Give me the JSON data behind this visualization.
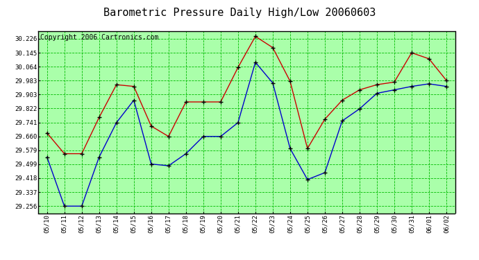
{
  "title": "Barometric Pressure Daily High/Low 20060603",
  "copyright": "Copyright 2006 Cartronics.com",
  "dates": [
    "05/10",
    "05/11",
    "05/12",
    "05/13",
    "05/14",
    "05/15",
    "05/16",
    "05/17",
    "05/18",
    "05/19",
    "05/20",
    "05/21",
    "05/22",
    "05/23",
    "05/24",
    "05/25",
    "05/26",
    "05/27",
    "05/28",
    "05/29",
    "05/30",
    "05/31",
    "06/01",
    "06/02"
  ],
  "high": [
    29.68,
    29.56,
    29.56,
    29.77,
    29.96,
    29.95,
    29.72,
    29.66,
    29.86,
    29.86,
    29.86,
    30.06,
    30.24,
    30.175,
    29.98,
    29.59,
    29.76,
    29.87,
    29.93,
    29.96,
    29.975,
    30.145,
    30.11,
    29.985
  ],
  "low": [
    29.54,
    29.256,
    29.256,
    29.54,
    29.74,
    29.87,
    29.5,
    29.49,
    29.56,
    29.66,
    29.66,
    29.74,
    30.09,
    29.97,
    29.59,
    29.41,
    29.45,
    29.75,
    29.82,
    29.91,
    29.93,
    29.95,
    29.965,
    29.95
  ],
  "high_color": "#cc0000",
  "low_color": "#0000cc",
  "bg_color": "#aaffaa",
  "grid_color": "#00bb00",
  "title_fontsize": 11,
  "copyright_fontsize": 7,
  "y_ticks": [
    29.256,
    29.337,
    29.418,
    29.499,
    29.579,
    29.66,
    29.741,
    29.822,
    29.903,
    29.983,
    30.064,
    30.145,
    30.226
  ],
  "ylim_min": 29.215,
  "ylim_max": 30.27,
  "border_color": "#000000",
  "fig_width": 6.9,
  "fig_height": 3.75,
  "dpi": 100
}
